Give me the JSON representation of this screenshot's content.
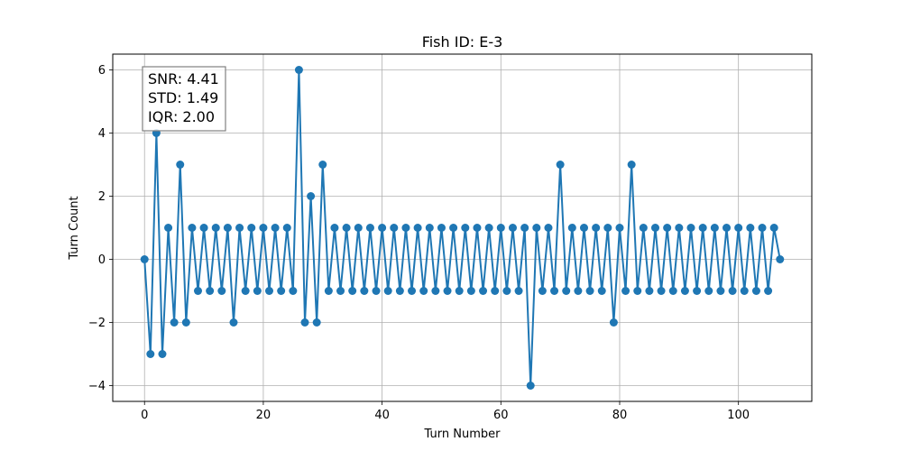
{
  "chart_data": {
    "type": "line",
    "title": "Fish ID: E-3",
    "xlabel": "Turn Number",
    "ylabel": "Turn Count",
    "xlim": [
      -5.35,
      112.35
    ],
    "ylim": [
      -4.5,
      6.5
    ],
    "xticks": [
      0,
      20,
      40,
      60,
      80,
      100
    ],
    "yticks": [
      -4,
      -2,
      0,
      2,
      4,
      6
    ],
    "xtick_labels": [
      "0",
      "20",
      "40",
      "60",
      "80",
      "100"
    ],
    "ytick_labels": [
      "−4",
      "−2",
      "0",
      "2",
      "4",
      "6"
    ],
    "grid": true,
    "marker": "circle",
    "color": "#1f77b4",
    "series": [
      {
        "x": [
          0,
          1,
          2,
          3,
          4,
          5,
          6,
          7,
          8,
          9,
          10,
          11,
          12,
          13,
          14,
          15,
          16,
          17,
          18,
          19,
          20,
          21,
          22,
          23,
          24,
          25,
          26,
          27,
          28,
          29,
          30,
          31,
          32,
          33,
          34,
          35,
          36,
          37,
          38,
          39,
          40,
          41,
          42,
          43,
          44,
          45,
          46,
          47,
          48,
          49,
          50,
          51,
          52,
          53,
          54,
          55,
          56,
          57,
          58,
          59,
          60,
          61,
          62,
          63,
          64,
          65,
          66,
          67,
          68,
          69,
          70,
          71,
          72,
          73,
          74,
          75,
          76,
          77,
          78,
          79,
          80,
          81,
          82,
          83,
          84,
          85,
          86,
          87,
          88,
          89,
          90,
          91,
          92,
          93,
          94,
          95,
          96,
          97,
          98,
          99,
          100,
          101,
          102,
          103,
          104,
          105,
          106,
          107
        ],
        "y": [
          0,
          -3,
          4,
          -3,
          1,
          -2,
          3,
          -2,
          1,
          -1,
          1,
          -1,
          1,
          -1,
          1,
          -2,
          1,
          -1,
          1,
          -1,
          1,
          -1,
          1,
          -1,
          1,
          -1,
          6,
          -2,
          2,
          -2,
          3,
          -1,
          1,
          -1,
          1,
          -1,
          1,
          -1,
          1,
          -1,
          1,
          -1,
          1,
          -1,
          1,
          -1,
          1,
          -1,
          1,
          -1,
          1,
          -1,
          1,
          -1,
          1,
          -1,
          1,
          -1,
          1,
          -1,
          1,
          -1,
          1,
          -1,
          1,
          -4,
          1,
          -1,
          1,
          -1,
          3,
          -1,
          1,
          -1,
          1,
          -1,
          1,
          -1,
          1,
          -2,
          1,
          -1,
          3,
          -1,
          1,
          -1,
          1,
          -1,
          1,
          -1,
          1,
          -1,
          1,
          -1,
          1,
          -1,
          1,
          -1,
          1,
          -1,
          1,
          -1,
          1,
          -1,
          1,
          -1,
          1,
          0
        ]
      }
    ],
    "annotation": {
      "lines": [
        "SNR: 4.41",
        "STD: 1.49",
        "IQR: 2.00"
      ],
      "placement": "top-left"
    }
  }
}
